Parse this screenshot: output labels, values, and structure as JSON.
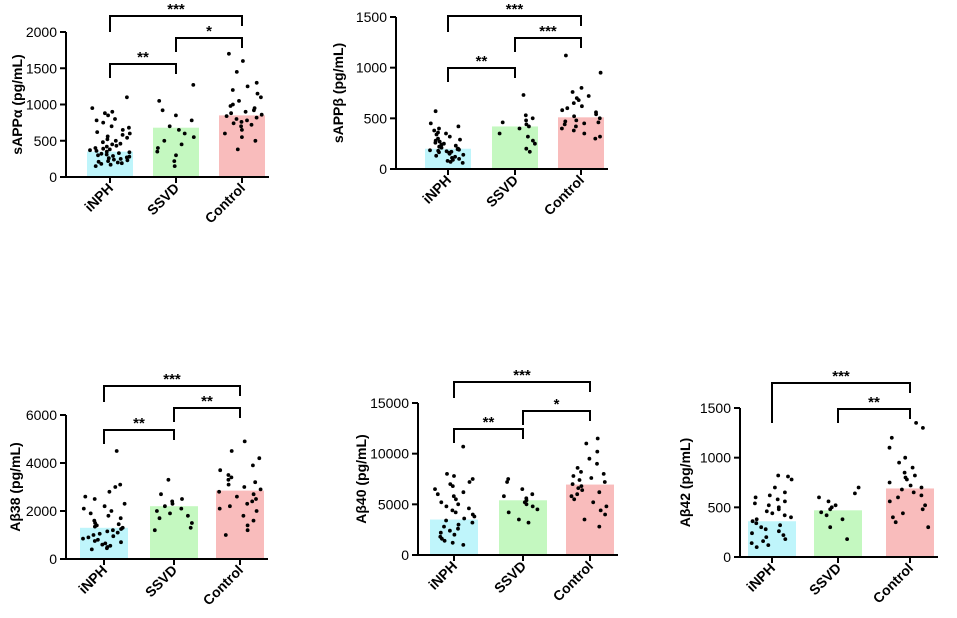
{
  "chart_data": [
    {
      "type": "bar",
      "ylabel": "sAPPα (pg/mL)",
      "categories": [
        "iNPH",
        "SSVD",
        "Control"
      ],
      "values": [
        350,
        680,
        850
      ],
      "ylim": [
        0,
        2000
      ],
      "yticks": [
        "0",
        "500",
        "1000",
        "1500",
        "2000"
      ],
      "colors": [
        "#bff5fb",
        "#c4f8c0",
        "#f9bcbc"
      ],
      "points": [
        [
          1100,
          950,
          900,
          880,
          850,
          800,
          780,
          750,
          700,
          680,
          650,
          620,
          600,
          580,
          560,
          540,
          520,
          500,
          480,
          460,
          450,
          430,
          420,
          400,
          390,
          380,
          370,
          360,
          350,
          340,
          330,
          320,
          310,
          300,
          290,
          280,
          270,
          260,
          250,
          240,
          230,
          220,
          210,
          200,
          190,
          180,
          170,
          150
        ],
        [
          1270,
          1050,
          920,
          850,
          780,
          700,
          650,
          600,
          550,
          500,
          450,
          400,
          350,
          300,
          220,
          150
        ],
        [
          1700,
          1600,
          1450,
          1300,
          1250,
          1200,
          1150,
          1100,
          1050,
          1000,
          980,
          950,
          920,
          900,
          880,
          860,
          840,
          820,
          800,
          780,
          760,
          740,
          720,
          700,
          650,
          600,
          550,
          500,
          380
        ]
      ],
      "brackets": [
        {
          "from": 0,
          "to": 2,
          "label": "***"
        },
        {
          "from": 0,
          "to": 1,
          "label": "**"
        },
        {
          "from": 1,
          "to": 2,
          "label": "*"
        }
      ]
    },
    {
      "type": "bar",
      "ylabel": "sAPPβ (pg/mL)",
      "categories": [
        "iNPH",
        "SSVD",
        "Control"
      ],
      "values": [
        200,
        420,
        510
      ],
      "ylim": [
        0,
        1500
      ],
      "yticks": [
        "0",
        "500",
        "1000",
        "1500"
      ],
      "colors": [
        "#bff5fb",
        "#c4f8c0",
        "#f9bcbc"
      ],
      "points": [
        [
          570,
          450,
          420,
          400,
          380,
          360,
          350,
          340,
          320,
          300,
          290,
          280,
          270,
          260,
          250,
          240,
          230,
          220,
          210,
          200,
          195,
          190,
          185,
          180,
          175,
          170,
          165,
          160,
          150,
          140,
          130,
          120,
          110,
          100,
          90,
          80,
          70,
          60
        ],
        [
          730,
          530,
          500,
          480,
          460,
          440,
          420,
          400,
          350,
          320,
          280,
          250,
          200,
          170
        ],
        [
          1120,
          950,
          800,
          760,
          720,
          700,
          680,
          650,
          620,
          600,
          580,
          560,
          540,
          520,
          500,
          480,
          470,
          460,
          450,
          440,
          420,
          400,
          380,
          350,
          320,
          300
        ]
      ],
      "brackets": [
        {
          "from": 0,
          "to": 2,
          "label": "***"
        },
        {
          "from": 0,
          "to": 1,
          "label": "**"
        },
        {
          "from": 1,
          "to": 2,
          "label": "***"
        }
      ]
    },
    {
      "type": "bar",
      "ylabel": "Aβ38 (pg/mL)",
      "categories": [
        "iNPH",
        "SSVD",
        "Control"
      ],
      "values": [
        1300,
        2200,
        2850
      ],
      "ylim": [
        0,
        6000
      ],
      "yticks": [
        "0",
        "2000",
        "4000",
        "6000"
      ],
      "colors": [
        "#bff5fb",
        "#c4f8c0",
        "#f9bcbc"
      ],
      "points": [
        [
          4500,
          3100,
          3000,
          2800,
          2600,
          2500,
          2300,
          2200,
          2100,
          2000,
          1900,
          1800,
          1700,
          1600,
          1500,
          1450,
          1400,
          1350,
          1300,
          1250,
          1200,
          1150,
          1100,
          1050,
          1000,
          950,
          900,
          850,
          800,
          750,
          700,
          650,
          600,
          550,
          500,
          450,
          400
        ],
        [
          3300,
          2700,
          2500,
          2400,
          2300,
          2200,
          2100,
          2000,
          1900,
          1800,
          1700,
          1500,
          1300,
          1200
        ],
        [
          4900,
          4500,
          4200,
          3900,
          3700,
          3500,
          3400,
          3300,
          3200,
          3100,
          3000,
          2900,
          2800,
          2700,
          2600,
          2500,
          2400,
          2300,
          2200,
          2100,
          2000,
          1800,
          1600,
          1400,
          1200,
          1000
        ]
      ],
      "brackets": [
        {
          "from": 0,
          "to": 2,
          "label": "***"
        },
        {
          "from": 0,
          "to": 1,
          "label": "**"
        },
        {
          "from": 1,
          "to": 2,
          "label": "**"
        }
      ]
    },
    {
      "type": "bar",
      "ylabel": "Aβ40 (pg/mL)",
      "categories": [
        "iNPH",
        "SSVD",
        "Control"
      ],
      "values": [
        3500,
        5400,
        6950
      ],
      "ylim": [
        0,
        15000
      ],
      "yticks": [
        "0",
        "5000",
        "10000",
        "15000"
      ],
      "colors": [
        "#bff5fb",
        "#c4f8c0",
        "#f9bcbc"
      ],
      "points": [
        [
          10700,
          8000,
          7800,
          7500,
          7200,
          7000,
          6800,
          6500,
          6200,
          6000,
          5800,
          5500,
          5200,
          5000,
          4800,
          4600,
          4400,
          4200,
          4000,
          3800,
          3600,
          3400,
          3200,
          3000,
          2800,
          2600,
          2400,
          2200,
          2000,
          1800,
          1600,
          1400,
          1200,
          1000
        ],
        [
          7500,
          7200,
          6500,
          6000,
          5800,
          5600,
          5400,
          5200,
          5000,
          4800,
          4500,
          4200,
          3500,
          3200
        ],
        [
          11500,
          11000,
          10200,
          9500,
          9000,
          8600,
          8200,
          8000,
          7800,
          7600,
          7400,
          7200,
          7000,
          6800,
          6600,
          6400,
          6200,
          6000,
          5800,
          5500,
          5200,
          4800,
          4400,
          4000,
          3500,
          2800
        ]
      ],
      "brackets": [
        {
          "from": 0,
          "to": 2,
          "label": "***"
        },
        {
          "from": 0,
          "to": 1,
          "label": "**"
        },
        {
          "from": 1,
          "to": 2,
          "label": "*"
        }
      ]
    },
    {
      "type": "bar",
      "ylabel": "Aβ42 (pg/mL)",
      "categories": [
        "iNPH",
        "SSVD",
        "Control"
      ],
      "values": [
        360,
        470,
        690
      ],
      "ylim": [
        0,
        1500
      ],
      "yticks": [
        "0",
        "500",
        "1000",
        "1500"
      ],
      "colors": [
        "#bff5fb",
        "#c4f8c0",
        "#f9bcbc"
      ],
      "points": [
        [
          820,
          810,
          780,
          700,
          650,
          620,
          600,
          580,
          560,
          540,
          520,
          500,
          480,
          460,
          440,
          420,
          400,
          380,
          360,
          340,
          320,
          300,
          280,
          260,
          240,
          220,
          200,
          180,
          160,
          140,
          120,
          100
        ],
        [
          700,
          640,
          600,
          560,
          520,
          500,
          480,
          450,
          420,
          380,
          300,
          180
        ],
        [
          1350,
          1300,
          1200,
          1100,
          1000,
          950,
          900,
          850,
          820,
          800,
          780,
          750,
          720,
          700,
          680,
          650,
          620,
          600,
          560,
          520,
          480,
          440,
          400,
          350,
          300
        ]
      ],
      "brackets": [
        {
          "from": 0,
          "to": 2,
          "label": "***"
        },
        {
          "from": 1,
          "to": 2,
          "label": "**"
        }
      ]
    }
  ]
}
